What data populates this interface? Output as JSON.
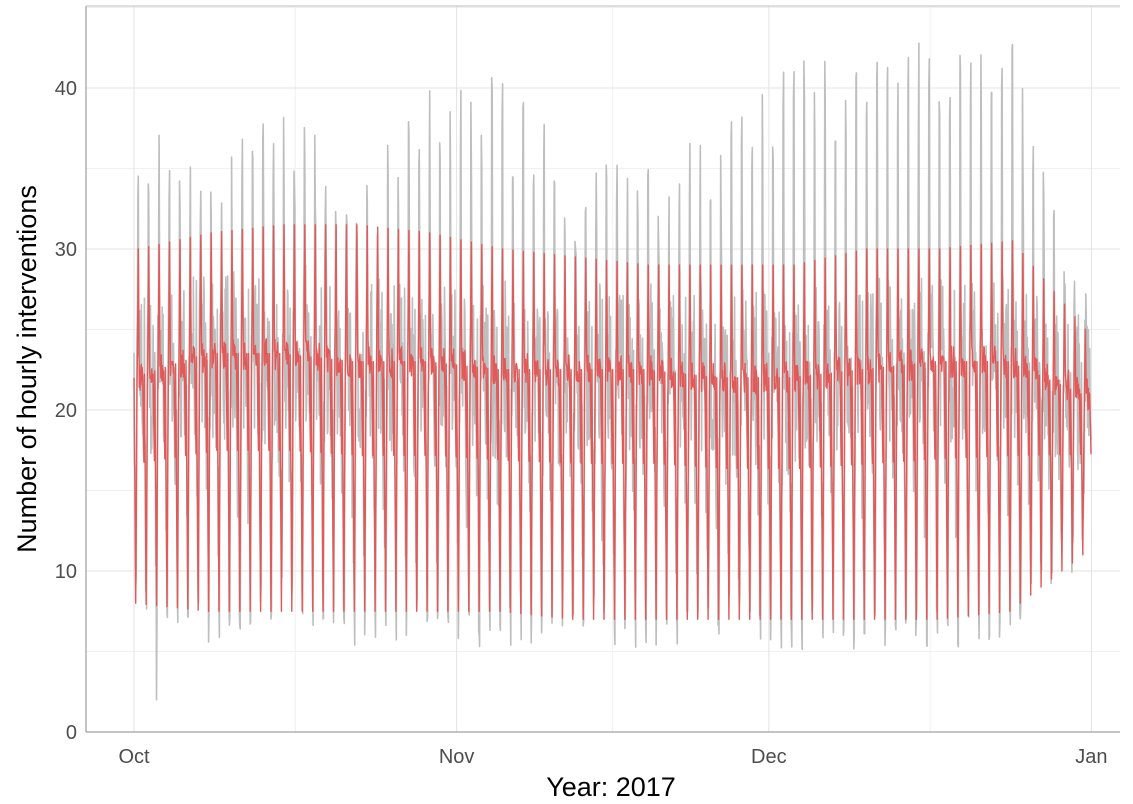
{
  "chart_data": {
    "type": "line",
    "title": "",
    "xlabel": "Year: 2017",
    "ylabel": "Number of hourly interventions",
    "x_range": [
      "2017-10-01",
      "2017-12-31"
    ],
    "x_ticks": [
      {
        "date": "2017-10-01",
        "label": "Oct"
      },
      {
        "date": "2017-11-01",
        "label": "Nov"
      },
      {
        "date": "2017-12-01",
        "label": "Dec"
      },
      {
        "date": "2018-01-01",
        "label": "Jan"
      }
    ],
    "ylim": [
      0,
      45
    ],
    "y_ticks": [
      0,
      10,
      20,
      30,
      40
    ],
    "grid": true,
    "resolution": "hourly",
    "series": [
      {
        "color": "#bebebe",
        "daily_summary": {
          "dates": [
            "2017-10-01",
            "2017-10-08",
            "2017-10-15",
            "2017-10-22",
            "2017-10-29",
            "2017-11-05",
            "2017-11-12",
            "2017-11-19",
            "2017-11-26",
            "2017-12-03",
            "2017-12-10",
            "2017-12-17",
            "2017-12-24",
            "2017-12-31"
          ],
          "daily_min": [
            7,
            5,
            7,
            5,
            6,
            5,
            6,
            5,
            6,
            5,
            5,
            5,
            6,
            12
          ],
          "daily_max": [
            38,
            35,
            40,
            35,
            40,
            41,
            36,
            35,
            38,
            42,
            43,
            43,
            43,
            26
          ]
        },
        "overall_min": 2,
        "overall_max": 43
      },
      {
        "color": "#e05a5a",
        "daily_summary": {
          "dates": [
            "2017-10-01",
            "2017-10-08",
            "2017-10-15",
            "2017-10-22",
            "2017-10-29",
            "2017-11-05",
            "2017-11-12",
            "2017-11-19",
            "2017-11-26",
            "2017-12-03",
            "2017-12-10",
            "2017-12-17",
            "2017-12-24",
            "2017-12-31"
          ],
          "daily_trough": [
            8,
            7.5,
            7.5,
            7.5,
            7.5,
            7.5,
            7,
            7,
            7,
            7,
            7,
            7,
            7.5,
            11
          ],
          "daily_peak": [
            30,
            31,
            31.5,
            31.5,
            31,
            30,
            29.5,
            29,
            29,
            29,
            30,
            30,
            30.5,
            25
          ],
          "plateau": [
            22,
            23.5,
            23.5,
            23,
            23,
            22.5,
            22.5,
            22.5,
            22,
            22,
            22.5,
            23,
            23,
            21
          ]
        }
      }
    ]
  }
}
